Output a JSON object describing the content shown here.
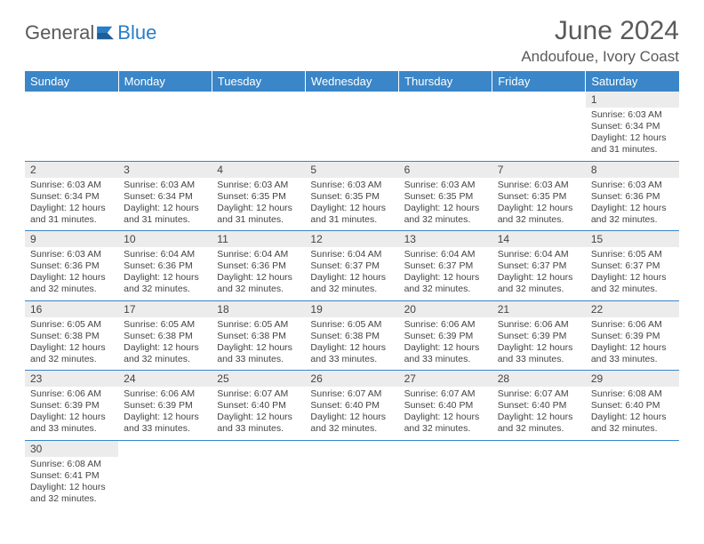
{
  "brand": {
    "part1": "General",
    "part2": "Blue"
  },
  "title": "June 2024",
  "location": "Andoufoue, Ivory Coast",
  "colors": {
    "header_bg": "#3a86c8",
    "header_text": "#ffffff",
    "daynum_bg": "#ececec",
    "border": "#3a86c8",
    "text": "#444444",
    "brand_gray": "#5a5a5a",
    "brand_blue": "#2a7ec6"
  },
  "weekdays": [
    "Sunday",
    "Monday",
    "Tuesday",
    "Wednesday",
    "Thursday",
    "Friday",
    "Saturday"
  ],
  "weeks": [
    [
      null,
      null,
      null,
      null,
      null,
      null,
      {
        "n": "1",
        "sr": "6:03 AM",
        "ss": "6:34 PM",
        "dl": "12 hours and 31 minutes."
      }
    ],
    [
      {
        "n": "2",
        "sr": "6:03 AM",
        "ss": "6:34 PM",
        "dl": "12 hours and 31 minutes."
      },
      {
        "n": "3",
        "sr": "6:03 AM",
        "ss": "6:34 PM",
        "dl": "12 hours and 31 minutes."
      },
      {
        "n": "4",
        "sr": "6:03 AM",
        "ss": "6:35 PM",
        "dl": "12 hours and 31 minutes."
      },
      {
        "n": "5",
        "sr": "6:03 AM",
        "ss": "6:35 PM",
        "dl": "12 hours and 31 minutes."
      },
      {
        "n": "6",
        "sr": "6:03 AM",
        "ss": "6:35 PM",
        "dl": "12 hours and 32 minutes."
      },
      {
        "n": "7",
        "sr": "6:03 AM",
        "ss": "6:35 PM",
        "dl": "12 hours and 32 minutes."
      },
      {
        "n": "8",
        "sr": "6:03 AM",
        "ss": "6:36 PM",
        "dl": "12 hours and 32 minutes."
      }
    ],
    [
      {
        "n": "9",
        "sr": "6:03 AM",
        "ss": "6:36 PM",
        "dl": "12 hours and 32 minutes."
      },
      {
        "n": "10",
        "sr": "6:04 AM",
        "ss": "6:36 PM",
        "dl": "12 hours and 32 minutes."
      },
      {
        "n": "11",
        "sr": "6:04 AM",
        "ss": "6:36 PM",
        "dl": "12 hours and 32 minutes."
      },
      {
        "n": "12",
        "sr": "6:04 AM",
        "ss": "6:37 PM",
        "dl": "12 hours and 32 minutes."
      },
      {
        "n": "13",
        "sr": "6:04 AM",
        "ss": "6:37 PM",
        "dl": "12 hours and 32 minutes."
      },
      {
        "n": "14",
        "sr": "6:04 AM",
        "ss": "6:37 PM",
        "dl": "12 hours and 32 minutes."
      },
      {
        "n": "15",
        "sr": "6:05 AM",
        "ss": "6:37 PM",
        "dl": "12 hours and 32 minutes."
      }
    ],
    [
      {
        "n": "16",
        "sr": "6:05 AM",
        "ss": "6:38 PM",
        "dl": "12 hours and 32 minutes."
      },
      {
        "n": "17",
        "sr": "6:05 AM",
        "ss": "6:38 PM",
        "dl": "12 hours and 32 minutes."
      },
      {
        "n": "18",
        "sr": "6:05 AM",
        "ss": "6:38 PM",
        "dl": "12 hours and 33 minutes."
      },
      {
        "n": "19",
        "sr": "6:05 AM",
        "ss": "6:38 PM",
        "dl": "12 hours and 33 minutes."
      },
      {
        "n": "20",
        "sr": "6:06 AM",
        "ss": "6:39 PM",
        "dl": "12 hours and 33 minutes."
      },
      {
        "n": "21",
        "sr": "6:06 AM",
        "ss": "6:39 PM",
        "dl": "12 hours and 33 minutes."
      },
      {
        "n": "22",
        "sr": "6:06 AM",
        "ss": "6:39 PM",
        "dl": "12 hours and 33 minutes."
      }
    ],
    [
      {
        "n": "23",
        "sr": "6:06 AM",
        "ss": "6:39 PM",
        "dl": "12 hours and 33 minutes."
      },
      {
        "n": "24",
        "sr": "6:06 AM",
        "ss": "6:39 PM",
        "dl": "12 hours and 33 minutes."
      },
      {
        "n": "25",
        "sr": "6:07 AM",
        "ss": "6:40 PM",
        "dl": "12 hours and 33 minutes."
      },
      {
        "n": "26",
        "sr": "6:07 AM",
        "ss": "6:40 PM",
        "dl": "12 hours and 32 minutes."
      },
      {
        "n": "27",
        "sr": "6:07 AM",
        "ss": "6:40 PM",
        "dl": "12 hours and 32 minutes."
      },
      {
        "n": "28",
        "sr": "6:07 AM",
        "ss": "6:40 PM",
        "dl": "12 hours and 32 minutes."
      },
      {
        "n": "29",
        "sr": "6:08 AM",
        "ss": "6:40 PM",
        "dl": "12 hours and 32 minutes."
      }
    ],
    [
      {
        "n": "30",
        "sr": "6:08 AM",
        "ss": "6:41 PM",
        "dl": "12 hours and 32 minutes."
      },
      null,
      null,
      null,
      null,
      null,
      null
    ]
  ],
  "labels": {
    "sunrise": "Sunrise: ",
    "sunset": "Sunset: ",
    "daylight": "Daylight: "
  }
}
